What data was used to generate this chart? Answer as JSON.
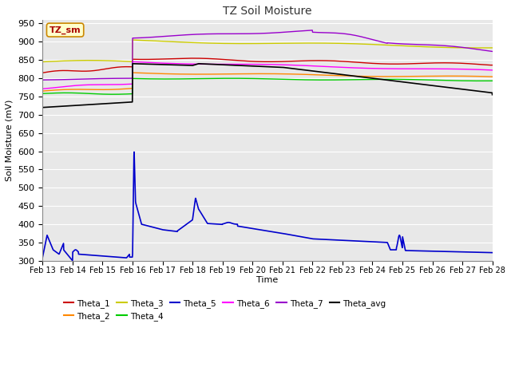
{
  "title": "TZ Soil Moisture",
  "ylabel": "Soil Moisture (mV)",
  "xlabel": "Time",
  "label_box": "TZ_sm",
  "ylim": [
    300,
    960
  ],
  "yticks": [
    300,
    350,
    400,
    450,
    500,
    550,
    600,
    650,
    700,
    750,
    800,
    850,
    900,
    950
  ],
  "date_start": 13,
  "date_end": 28,
  "fig_bg": "#ffffff",
  "plot_bg": "#e8e8e8",
  "grid_color": "#ffffff",
  "series_colors": {
    "Theta_1": "#cc0000",
    "Theta_2": "#ff8800",
    "Theta_3": "#cccc00",
    "Theta_4": "#00cc00",
    "Theta_5": "#0000cc",
    "Theta_6": "#ff00ff",
    "Theta_7": "#9900cc",
    "Theta_avg": "#000000"
  }
}
